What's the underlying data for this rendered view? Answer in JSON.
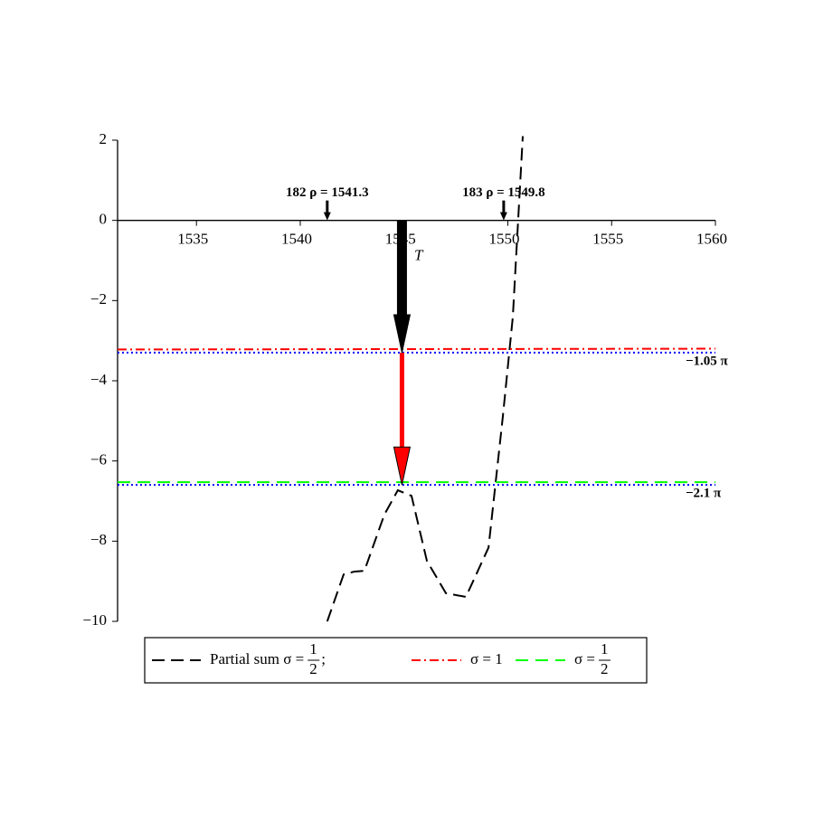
{
  "chart_data": {
    "type": "line",
    "x_label": "T",
    "xlim": [
      1531.2,
      1560
    ],
    "ylim": [
      -10,
      2
    ],
    "xticks": [
      1535,
      1540,
      1545,
      1550,
      1555,
      1560
    ],
    "yticks": [
      2,
      0,
      {
        "value": -2,
        "label": "−2"
      },
      {
        "value": -4,
        "label": "−4"
      },
      {
        "value": -6,
        "label": "−6"
      },
      {
        "value": -8,
        "label": "−8"
      },
      {
        "value": -10,
        "label": "−10"
      }
    ],
    "series": [
      {
        "name": "Partial sum σ = 1/2;",
        "color": "#000000",
        "dash": "14,7",
        "x": [
          1541.3,
          1542.09,
          1542.6,
          1543.09,
          1544.05,
          1544.7,
          1545.36,
          1546.1,
          1547.02,
          1547.98,
          1549.07,
          1549.76,
          1550.24,
          1550.72
        ],
        "values": [
          -10,
          -8.83,
          -8.76,
          -8.74,
          -7.34,
          -6.73,
          -6.87,
          -8.49,
          -9.3,
          -9.39,
          -8.16,
          -4.89,
          -2.41,
          2.1
        ]
      },
      {
        "name": "σ = 1",
        "color": "#ff0000",
        "dash": "10,4,2,4",
        "x": [
          1531.2,
          1560
        ],
        "values": [
          -3.22,
          -3.2
        ]
      },
      {
        "name": "σ = 1/2",
        "color": "#00ff00",
        "dash": "14,8",
        "x": [
          1531.2,
          1560
        ],
        "values": [
          -6.53,
          -6.53
        ]
      }
    ],
    "reference_lines": [
      {
        "value": -3.299,
        "label": "−1.05 π",
        "color": "#0000ff"
      },
      {
        "value": -6.597,
        "label": "−2.1 π",
        "color": "#0000ff"
      }
    ],
    "annotations": [
      {
        "x": 1541.3,
        "text": "182 ρ = 1541.3"
      },
      {
        "x": 1549.8,
        "text": "183 ρ = 1549.8"
      }
    ],
    "arrows": [
      {
        "x": 1544.9,
        "from": 0,
        "to": -3.3,
        "color": "#000000"
      },
      {
        "x": 1544.9,
        "from": -3.3,
        "to": -6.6,
        "color": "#ff0000"
      }
    ]
  }
}
